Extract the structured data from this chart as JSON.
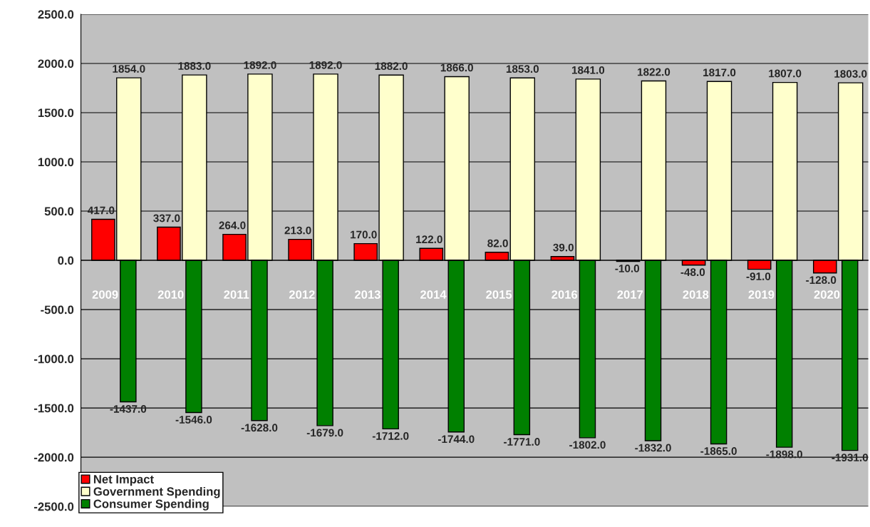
{
  "chart_data": {
    "type": "bar",
    "categories": [
      "2009",
      "2010",
      "2011",
      "2012",
      "2013",
      "2014",
      "2015",
      "2016",
      "2017",
      "2018",
      "2019",
      "2020"
    ],
    "series": [
      {
        "name": "Net Impact",
        "color": "#ff0000",
        "values": [
          417,
          337,
          264,
          213,
          170,
          122,
          82,
          39,
          -10,
          -48,
          -91,
          -128
        ],
        "value_labels": [
          "417.0",
          "337.0",
          "264.0",
          "213.0",
          "170.0",
          "122.0",
          "82.0",
          "39.0",
          "-10.0",
          "-48.0",
          "-91.0",
          "-128.0"
        ]
      },
      {
        "name": "Government Spending",
        "color": "#ffffcc",
        "values": [
          1854,
          1883,
          1892,
          1892,
          1882,
          1866,
          1853,
          1841,
          1822,
          1817,
          1807,
          1803
        ],
        "value_labels": [
          "1854.0",
          "1883.0",
          "1892.0",
          "1892.0",
          "1882.0",
          "1866.0",
          "1853.0",
          "1841.0",
          "1822.0",
          "1817.0",
          "1807.0",
          "1803.0"
        ]
      },
      {
        "name": "Consumer Spending",
        "color": "#008000",
        "values": [
          -1437,
          -1546,
          -1628,
          -1679,
          -1712,
          -1744,
          -1771,
          -1802,
          -1832,
          -1865,
          -1898,
          -1931
        ],
        "value_labels": [
          "-1437.0",
          "-1546.0",
          "-1628.0",
          "-1679.0",
          "-1712.0",
          "-1744.0",
          "-1771.0",
          "-1802.0",
          "-1832.0",
          "-1865.0",
          "-1898.0",
          "-1931.0"
        ]
      }
    ],
    "ylim": [
      -2500,
      2500
    ],
    "yticks": [
      {
        "value": -2500,
        "label": "-2500.0"
      },
      {
        "value": -2000,
        "label": "-2000.0"
      },
      {
        "value": -1500,
        "label": "-1500.0"
      },
      {
        "value": -1000,
        "label": "-1000.0"
      },
      {
        "value": -500,
        "label": "-500.0"
      },
      {
        "value": 0,
        "label": "0.0"
      },
      {
        "value": 500,
        "label": "500.0"
      },
      {
        "value": 1000,
        "label": "1000.0"
      },
      {
        "value": 1500,
        "label": "1500.0"
      },
      {
        "value": 2000,
        "label": "2000.0"
      },
      {
        "value": 2500,
        "label": "2500.0"
      }
    ],
    "grid": "y",
    "legend": "bottom left"
  }
}
